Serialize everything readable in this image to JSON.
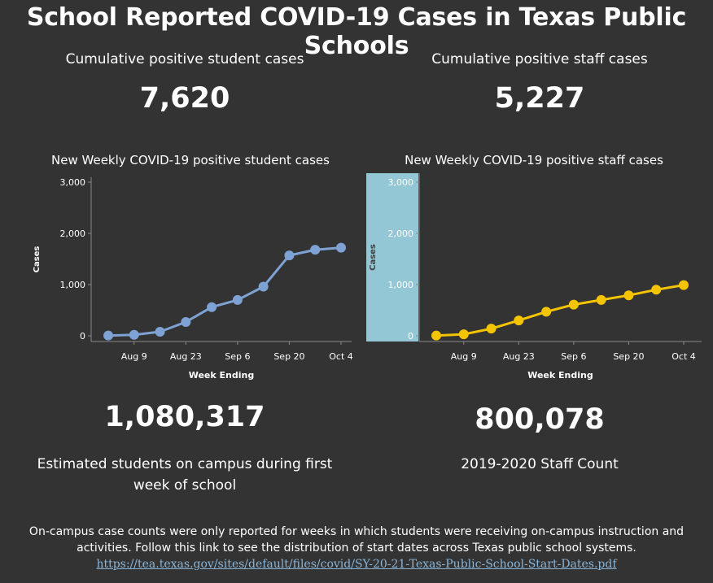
{
  "title": "School Reported COVID-19 Cases in Texas Public Schools",
  "kpis": {
    "student_label": "Cumulative positive student cases",
    "student_value": "7,620",
    "staff_label": "Cumulative positive staff cases",
    "staff_value": "5,227"
  },
  "bottom": {
    "students_value": "1,080,317",
    "students_desc_line1": "Estimated students on campus during first",
    "students_desc_line2": "week of school",
    "staff_value": "800,078",
    "staff_desc": "2019-2020 Staff Count"
  },
  "footnote": {
    "line1": "On-campus case counts were only reported for weeks in which students were receiving on-campus instruction and",
    "line2": "activities. Follow this link to see the distribution of start dates across Texas public school systems.",
    "link": "https://tea.texas.gov/sites/default/files/covid/SY-20-21-Texas-Public-School-Start-Dates.pdf"
  },
  "chart_data": [
    {
      "type": "line",
      "title": "New Weekly COVID-19 positive student cases",
      "xlabel": "Week Ending",
      "ylabel": "Cases",
      "x_tick_labels": [
        "Aug 9",
        "Aug 23",
        "Sep 6",
        "Sep 20",
        "Oct 4"
      ],
      "y_tick_labels": [
        "0",
        "1,000",
        "2,000",
        "3,000"
      ],
      "ylim": [
        0,
        3000
      ],
      "color": "#7fa2d4",
      "x": [
        "Aug 2",
        "Aug 9",
        "Aug 16",
        "Aug 23",
        "Aug 30",
        "Sep 6",
        "Sep 13",
        "Sep 20",
        "Sep 27",
        "Oct 4"
      ],
      "values": [
        5,
        20,
        80,
        270,
        560,
        700,
        960,
        1570,
        1680,
        1720
      ]
    },
    {
      "type": "line",
      "title": "New Weekly COVID-19 positive staff cases",
      "xlabel": "Week Ending",
      "ylabel": "Cases",
      "x_tick_labels": [
        "Aug 9",
        "Aug 23",
        "Sep 6",
        "Sep 20",
        "Oct 4"
      ],
      "y_tick_labels": [
        "0",
        "1,000",
        "2,000",
        "3,000"
      ],
      "ylim": [
        0,
        3000
      ],
      "color": "#f5c400",
      "highlight_color": "#93c7d6",
      "x": [
        "Aug 2",
        "Aug 9",
        "Aug 16",
        "Aug 23",
        "Aug 30",
        "Sep 6",
        "Sep 13",
        "Sep 20",
        "Sep 27",
        "Oct 4"
      ],
      "values": [
        5,
        30,
        140,
        300,
        470,
        610,
        700,
        790,
        900,
        990
      ]
    }
  ]
}
